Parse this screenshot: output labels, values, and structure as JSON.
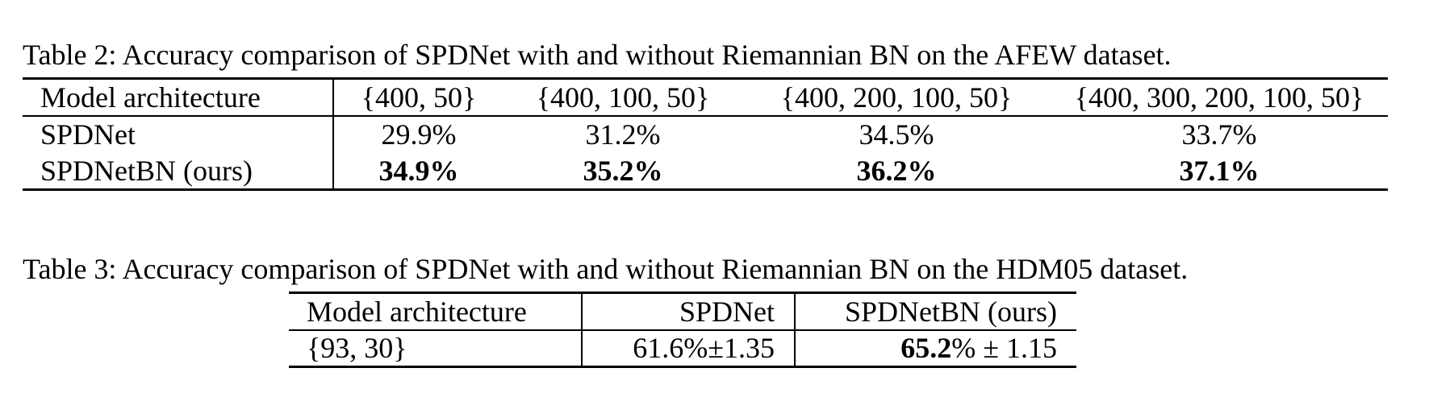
{
  "table2": {
    "caption": "Table 2: Accuracy comparison of SPDNet with and without Riemannian BN on the AFEW dataset.",
    "headers": [
      "Model architecture",
      "{400, 50}",
      "{400, 100, 50}",
      "{400, 200, 100, 50}",
      "{400, 300, 200, 100, 50}"
    ],
    "rows": [
      {
        "model": "SPDNet",
        "values": [
          "29.9%",
          "31.2%",
          "34.5%",
          "33.7%"
        ]
      },
      {
        "model": "SPDNetBN (ours)",
        "values": [
          "34.9%",
          "35.2%",
          "36.2%",
          "37.1%"
        ]
      }
    ]
  },
  "table3": {
    "caption": "Table 3: Accuracy comparison of SPDNet with and without Riemannian BN on the HDM05 dataset.",
    "headers": [
      "Model architecture",
      "SPDNet",
      "SPDNetBN (ours)"
    ],
    "rows": [
      {
        "model": "{93, 30}",
        "spdnet": "61.6%±1.35",
        "spdnetbn_mean": "65.2",
        "spdnetbn_rest": "% ± 1.15"
      }
    ]
  }
}
